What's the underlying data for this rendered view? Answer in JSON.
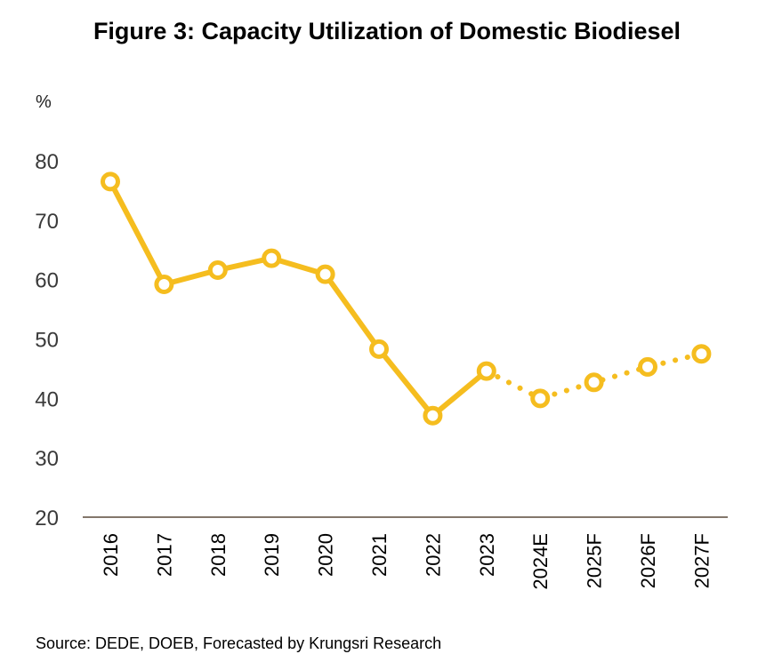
{
  "title": "Figure 3: Capacity Utilization of Domestic Biodiesel",
  "unit_label": "%",
  "source": "Source: DEDE, DOEB, Forecasted by Krungsri Research",
  "colors": {
    "line": "#F5BD1F",
    "axis": "#5a4a3a",
    "marker_fill": "#ffffff"
  },
  "chart_data": {
    "type": "line",
    "title": "Figure 3: Capacity Utilization of Domestic Biodiesel",
    "ylabel": "%",
    "xlabel": "",
    "ylim": [
      20,
      80
    ],
    "yticks": [
      20,
      30,
      40,
      50,
      60,
      70,
      80
    ],
    "categories": [
      "2016",
      "2017",
      "2018",
      "2019",
      "2020",
      "2021",
      "2022",
      "2023",
      "2024E",
      "2025F",
      "2026F",
      "2027F"
    ],
    "series": [
      {
        "values": [
          76.5,
          59.2,
          61.6,
          63.6,
          60.9,
          48.3,
          37.1,
          44.6,
          40.0,
          42.7,
          45.3,
          47.5
        ]
      }
    ],
    "actual_until_index": 7,
    "forecast_style": "dotted",
    "grid": false,
    "legend": "none"
  }
}
